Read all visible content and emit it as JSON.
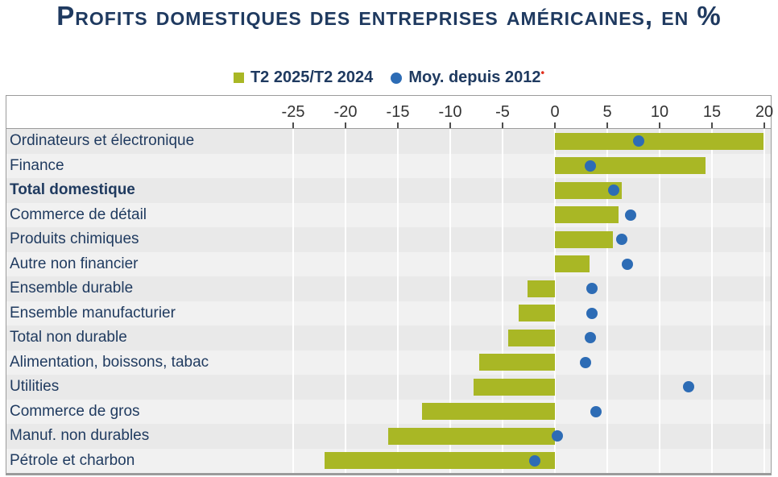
{
  "title": "Profits domestiques des entreprises américaines, en %",
  "legend": {
    "bar_label": "T2 2025/T2 2024",
    "dot_label": "Moy. depuis 2012",
    "footnote_marker": "•"
  },
  "colors": {
    "bar": "#a9b725",
    "dot": "#2d6cb5",
    "title_text": "#1f3a60",
    "row_label_text": "#1f3a5f",
    "band_dark": "#e9e9e9",
    "band_light": "#f1f1f1",
    "footnote_red": "#e0301e"
  },
  "chart_data": {
    "type": "bar",
    "orientation": "horizontal",
    "title": "Profits domestiques des entreprises américaines, en %",
    "legend_position": "top",
    "grid": "vertical-white-lines",
    "xticks": [
      -25,
      -20,
      -15,
      -10,
      -5,
      0,
      5,
      10,
      15,
      20
    ],
    "xlim": [
      -27,
      21
    ],
    "categories": [
      "Ordinateurs et électronique",
      "Finance",
      "Total domestique",
      "Commerce de détail",
      "Produits chimiques",
      "Autre non financier",
      "Ensemble durable",
      "Ensemble manufacturier",
      "Total non durable",
      "Alimentation, boissons, tabac",
      "Utilities",
      "Commerce de gros",
      "Manuf. non durables",
      "Pétrole et charbon"
    ],
    "emphasis_category": "Total domestique",
    "series": [
      {
        "name": "T2 2025/T2 2024",
        "style": "bar",
        "color": "#a9b725",
        "values": [
          19.9,
          14.4,
          6.4,
          6.1,
          5.5,
          3.3,
          -2.6,
          -3.5,
          -4.5,
          -7.2,
          -7.8,
          -12.7,
          -15.9,
          -22.0
        ]
      },
      {
        "name": "Moy. depuis 2012",
        "style": "point",
        "color": "#2d6cb5",
        "values": [
          8.0,
          3.4,
          5.6,
          7.2,
          6.4,
          6.9,
          3.5,
          3.5,
          3.4,
          2.9,
          12.8,
          3.9,
          0.2,
          -1.9
        ]
      }
    ]
  }
}
